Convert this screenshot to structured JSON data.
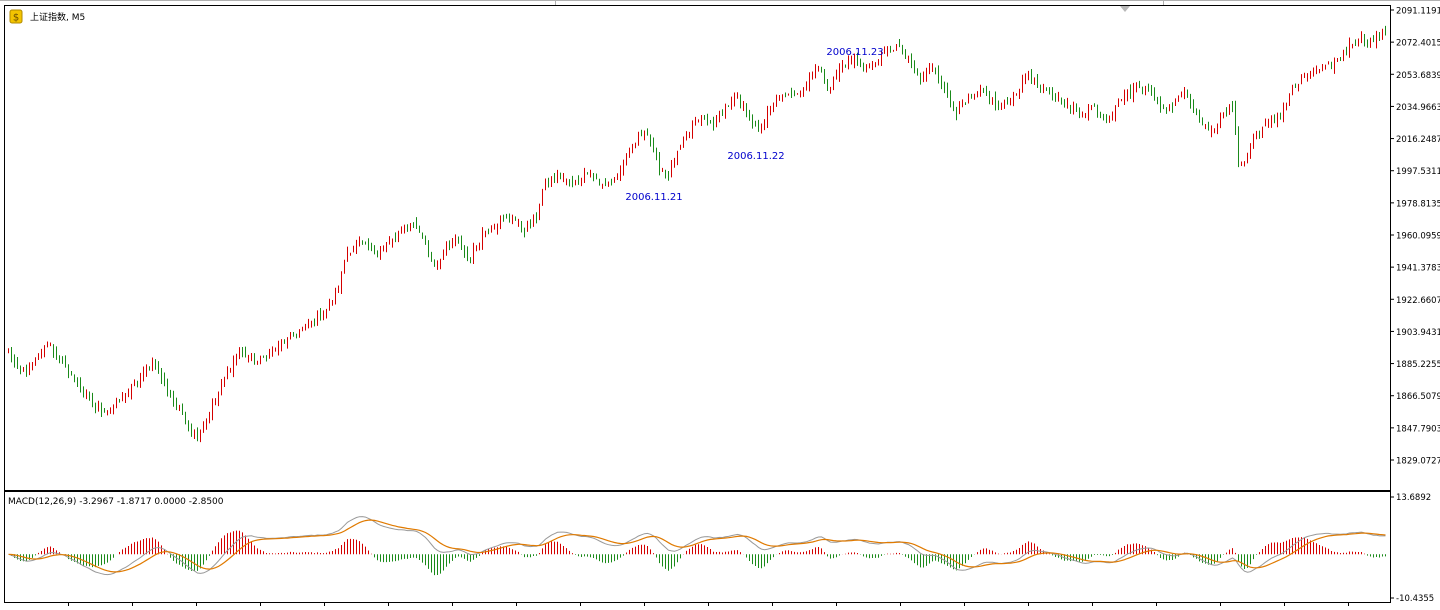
{
  "main_panel": {
    "symbol_label": "上证指数, M5",
    "icon": "dollar-coin-icon"
  },
  "price_axis_labels": [
    "2091.1191",
    "2072.4015",
    "2053.6839",
    "2034.9663",
    "2016.2487",
    "1997.5311",
    "1978.8135",
    "1960.0959",
    "1941.3783",
    "1922.6607",
    "1903.9431",
    "1885.2255",
    "1866.5079",
    "1847.7903",
    "1829.0727"
  ],
  "date_annotations": [
    "2006.11.21",
    "2006.11.22",
    "2006.11.23"
  ],
  "indicator_panel": {
    "label": "MACD(12,26,9) -3.2967 -1.8717 0.0000 -2.8500",
    "axis_labels": [
      "13.6892",
      "-10.4355"
    ]
  },
  "colors": {
    "up": "#d40000",
    "down": "#1a8a1a",
    "macd_line": "#999999",
    "signal_line": "#e07a00",
    "annotation": "#0000cc",
    "frame": "#000000"
  },
  "chart_data": {
    "type": "candlestick",
    "ylim": [
      1820,
      2095
    ],
    "macd_ylim": [
      -10.4355,
      13.6892
    ],
    "anchors": [
      [
        0,
        1892
      ],
      [
        10,
        1880
      ],
      [
        20,
        1882
      ],
      [
        30,
        1890
      ],
      [
        40,
        1898
      ],
      [
        52,
        1886
      ],
      [
        68,
        1875
      ],
      [
        85,
        1860
      ],
      [
        100,
        1858
      ],
      [
        112,
        1864
      ],
      [
        128,
        1873
      ],
      [
        145,
        1887
      ],
      [
        160,
        1868
      ],
      [
        175,
        1855
      ],
      [
        188,
        1842
      ],
      [
        200,
        1855
      ],
      [
        215,
        1875
      ],
      [
        230,
        1892
      ],
      [
        248,
        1886
      ],
      [
        265,
        1893
      ],
      [
        285,
        1902
      ],
      [
        305,
        1910
      ],
      [
        320,
        1918
      ],
      [
        330,
        1930
      ],
      [
        338,
        1950
      ],
      [
        350,
        1955
      ],
      [
        365,
        1950
      ],
      [
        380,
        1955
      ],
      [
        395,
        1962
      ],
      [
        405,
        1968
      ],
      [
        415,
        1958
      ],
      [
        425,
        1942
      ],
      [
        435,
        1950
      ],
      [
        448,
        1958
      ],
      [
        460,
        1945
      ],
      [
        475,
        1962
      ],
      [
        490,
        1968
      ],
      [
        505,
        1970
      ],
      [
        515,
        1963
      ],
      [
        528,
        1970
      ],
      [
        535,
        1988
      ],
      [
        548,
        1995
      ],
      [
        565,
        1990
      ],
      [
        580,
        1998
      ],
      [
        595,
        1988
      ],
      [
        610,
        1996
      ],
      [
        625,
        2012
      ],
      [
        637,
        2022
      ],
      [
        650,
        2000
      ],
      [
        660,
        1995
      ],
      [
        675,
        2015
      ],
      [
        690,
        2028
      ],
      [
        705,
        2025
      ],
      [
        718,
        2035
      ],
      [
        728,
        2040
      ],
      [
        738,
        2032
      ],
      [
        750,
        2020
      ],
      [
        758,
        2030
      ],
      [
        770,
        2040
      ],
      [
        785,
        2042
      ],
      [
        798,
        2048
      ],
      [
        808,
        2060
      ],
      [
        820,
        2045
      ],
      [
        832,
        2058
      ],
      [
        845,
        2062
      ],
      [
        860,
        2057
      ],
      [
        875,
        2065
      ],
      [
        888,
        2070
      ],
      [
        900,
        2062
      ],
      [
        912,
        2050
      ],
      [
        925,
        2060
      ],
      [
        935,
        2045
      ],
      [
        948,
        2032
      ],
      [
        960,
        2038
      ],
      [
        975,
        2044
      ],
      [
        990,
        2034
      ],
      [
        1005,
        2040
      ],
      [
        1020,
        2055
      ],
      [
        1030,
        2045
      ],
      [
        1045,
        2042
      ],
      [
        1060,
        2035
      ],
      [
        1072,
        2030
      ],
      [
        1085,
        2035
      ],
      [
        1100,
        2028
      ],
      [
        1112,
        2040
      ],
      [
        1125,
        2045
      ],
      [
        1138,
        2048
      ],
      [
        1150,
        2035
      ],
      [
        1162,
        2035
      ],
      [
        1175,
        2045
      ],
      [
        1188,
        2030
      ],
      [
        1200,
        2020
      ],
      [
        1212,
        2028
      ],
      [
        1226,
        2037
      ],
      [
        1228,
        2005
      ],
      [
        1235,
        2000
      ],
      [
        1245,
        2018
      ],
      [
        1258,
        2025
      ],
      [
        1272,
        2030
      ],
      [
        1280,
        2040
      ],
      [
        1292,
        2050
      ],
      [
        1305,
        2055
      ],
      [
        1320,
        2058
      ],
      [
        1330,
        2062
      ],
      [
        1340,
        2070
      ],
      [
        1350,
        2075
      ],
      [
        1362,
        2072
      ],
      [
        1375,
        2078
      ],
      [
        1385,
        2084
      ],
      [
        1390,
        2086
      ]
    ]
  }
}
